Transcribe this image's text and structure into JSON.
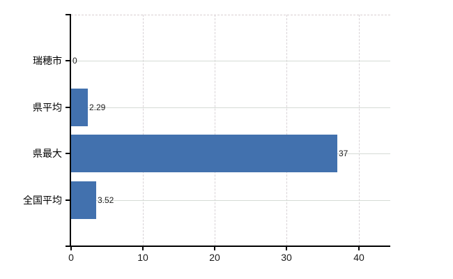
{
  "chart_data": {
    "type": "bar",
    "orientation": "horizontal",
    "title": "",
    "xlabel": "",
    "ylabel": "",
    "categories": [
      "瑞穂市",
      "県平均",
      "県最大",
      "全国平均"
    ],
    "values": [
      0,
      2.29,
      37,
      3.52
    ],
    "value_labels": [
      "0",
      "2.29",
      "37",
      "3.52"
    ],
    "x_ticks": [
      0,
      10,
      20,
      30,
      40
    ],
    "x_tick_labels": [
      "0",
      "10",
      "20",
      "30",
      "40"
    ],
    "xlim": [
      0,
      44.4
    ],
    "grid": true,
    "legend_position": "none",
    "colors": {
      "bar": "#4271AE",
      "axis": "#000000",
      "grid_horizontal": "#D5DBD5",
      "grid_vertical": "#D8D2D6",
      "plot_top_border": "#D8CFD2",
      "category_label": "#000000",
      "tick_label": "#1A1A1A",
      "value_label": "#1C1C1C",
      "background": "#FFFFFF"
    }
  }
}
